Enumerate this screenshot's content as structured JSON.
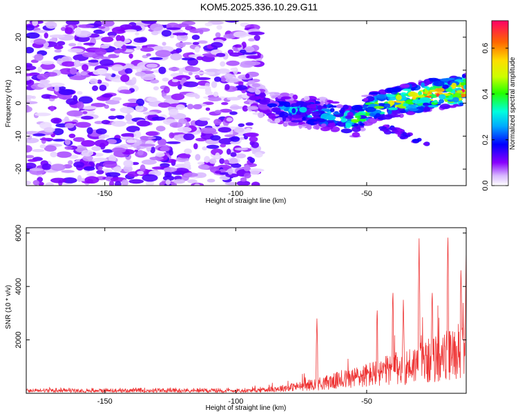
{
  "title": "KOM5.2025.336.10.29.G11",
  "chart_data": [
    {
      "type": "heatmap",
      "xlabel": "Height of straight line (km)",
      "ylabel": "Frequency (Hz)",
      "xlim": [
        -180,
        -12
      ],
      "ylim": [
        -25,
        25
      ],
      "xticks": [
        -150,
        -100,
        -50
      ],
      "yticks": [
        -20,
        -10,
        0,
        10,
        20
      ],
      "colorbar": {
        "label": "Normalized spectral amplitude",
        "range": [
          0,
          0.72
        ],
        "ticks": [
          0.0,
          0.2,
          0.4,
          0.6
        ]
      },
      "features": {
        "noise_region_x": [
          -180,
          -97
        ],
        "noise_freq_range": [
          -25,
          25
        ],
        "noise_level": [
          0.02,
          0.15
        ],
        "signal_track": [
          {
            "x": -95,
            "y": 3
          },
          {
            "x": -88,
            "y": -1
          },
          {
            "x": -80,
            "y": -2
          },
          {
            "x": -70,
            "y": -3
          },
          {
            "x": -62,
            "y": -4
          },
          {
            "x": -55,
            "y": -6
          },
          {
            "x": -48,
            "y": -1
          },
          {
            "x": -40,
            "y": 0
          },
          {
            "x": -30,
            "y": 2
          },
          {
            "x": -20,
            "y": 3
          },
          {
            "x": -12,
            "y": 4
          }
        ],
        "signal_level_start": 0.15,
        "signal_level_end": 0.7
      }
    },
    {
      "type": "line",
      "xlabel": "Height of straight line (km)",
      "ylabel": "SNR (10 * v/v)",
      "xlim": [
        -180,
        -12
      ],
      "ylim": [
        0,
        6200
      ],
      "xticks": [
        -150,
        -100,
        -50
      ],
      "yticks": [
        2000,
        4000,
        6000
      ],
      "color": "#ee3333",
      "peaks": [
        {
          "x": -69,
          "y": 2800
        },
        {
          "x": -46,
          "y": 3300
        },
        {
          "x": -40,
          "y": 4000
        },
        {
          "x": -36,
          "y": 3500
        },
        {
          "x": -30,
          "y": 5800
        },
        {
          "x": -25,
          "y": 4000
        },
        {
          "x": -19,
          "y": 6200
        },
        {
          "x": -14,
          "y": 4900
        },
        {
          "x": -12,
          "y": 5400
        }
      ],
      "baseline_noise_level": 120
    }
  ]
}
